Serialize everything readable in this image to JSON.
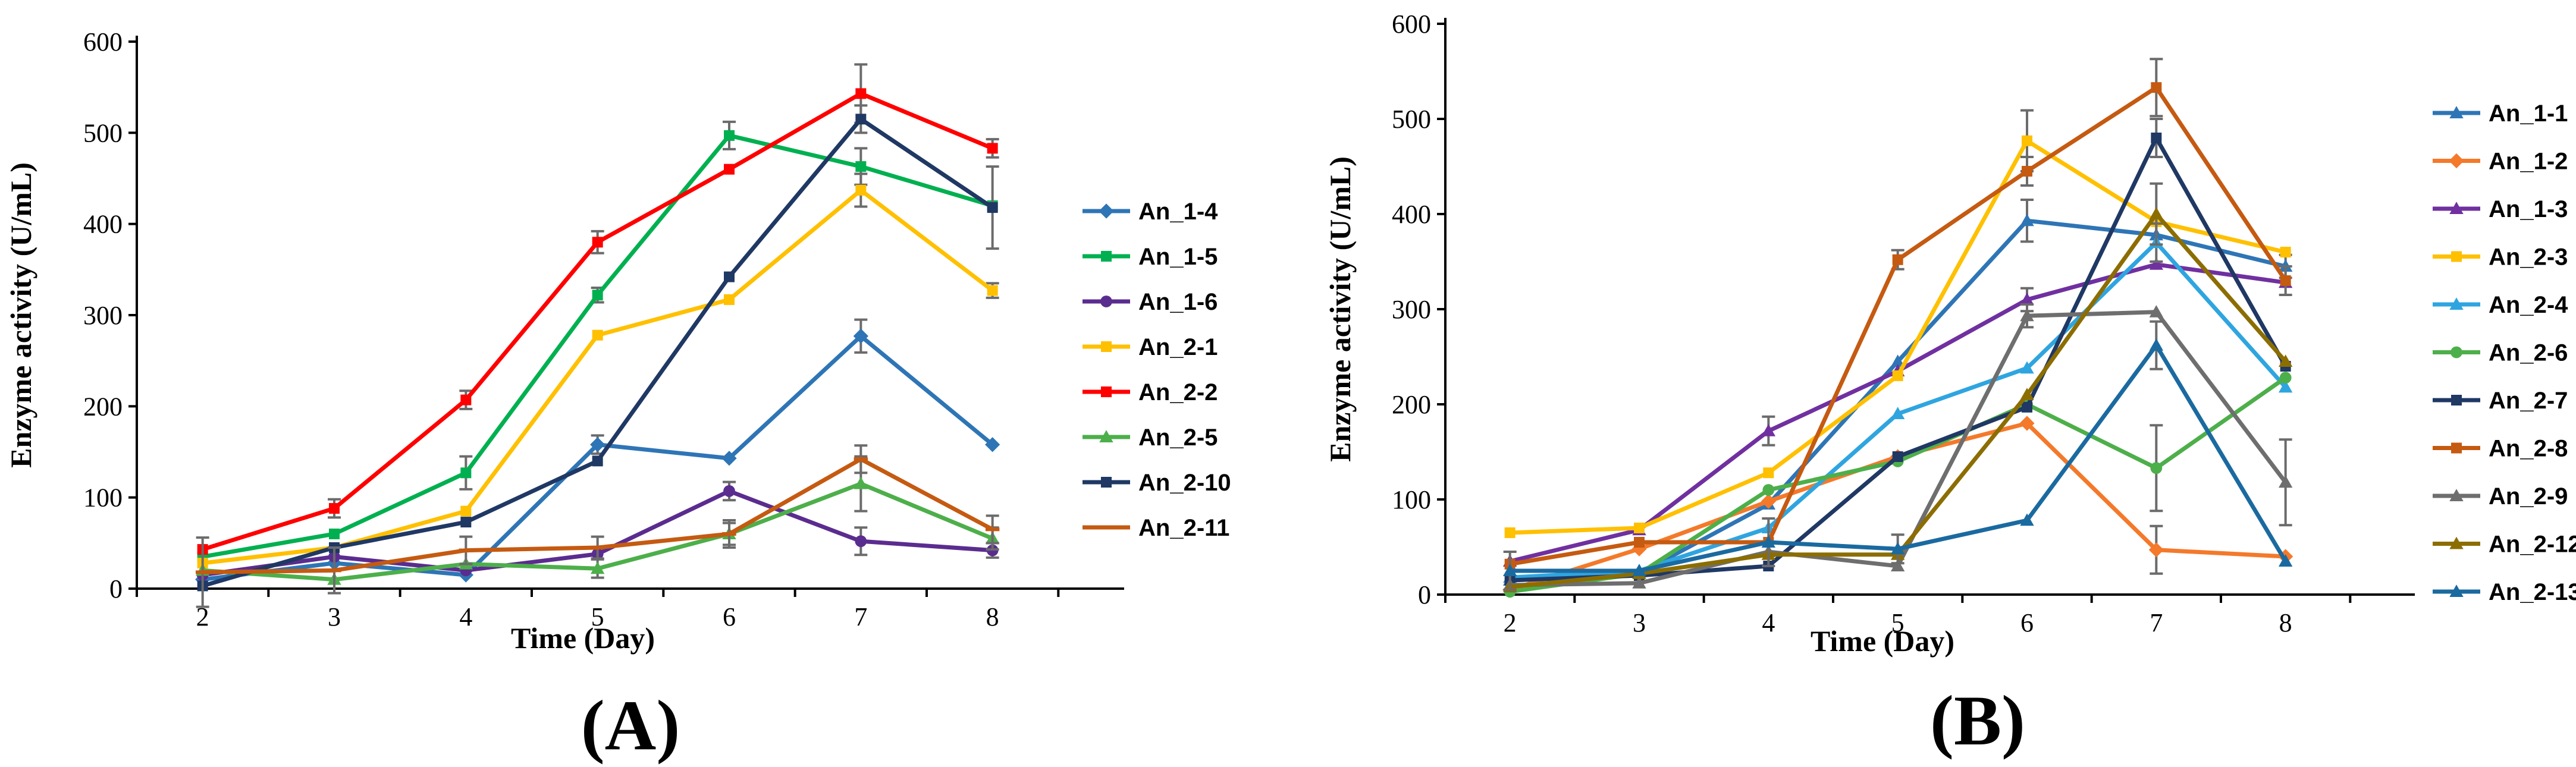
{
  "chart_data": [
    {
      "type": "line",
      "panel_label": "(A)",
      "xlabel": "Time (Day)",
      "ylabel": "Enzyme activity (U/mL)",
      "x": [
        2,
        3,
        4,
        5,
        6,
        7,
        8
      ],
      "xlim": [
        1.5,
        9.0
      ],
      "ylim": [
        0,
        600
      ],
      "yticks": [
        0,
        100,
        200,
        300,
        400,
        500,
        600
      ],
      "legend_position": "right",
      "series": [
        {
          "name": "An_1-4",
          "color": "#2e75b6",
          "marker": "diamond",
          "values": [
            10,
            28,
            15,
            158,
            143,
            277,
            158
          ],
          "errors": [
            0,
            0,
            0,
            10,
            0,
            18,
            0
          ]
        },
        {
          "name": "An_1-5",
          "color": "#00b050",
          "marker": "square",
          "values": [
            35,
            60,
            127,
            322,
            497,
            463,
            420
          ],
          "errors": [
            0,
            0,
            18,
            8,
            15,
            20,
            0
          ]
        },
        {
          "name": "An_1-6",
          "color": "#5b2c8f",
          "marker": "circle",
          "values": [
            15,
            35,
            20,
            38,
            107,
            52,
            42
          ],
          "errors": [
            0,
            0,
            0,
            0,
            10,
            15,
            8
          ]
        },
        {
          "name": "An_2-1",
          "color": "#ffc000",
          "marker": "square",
          "values": [
            28,
            45,
            85,
            278,
            317,
            437,
            327
          ],
          "errors": [
            0,
            0,
            0,
            0,
            0,
            18,
            8
          ]
        },
        {
          "name": "An_2-2",
          "color": "#ff0000",
          "marker": "square",
          "values": [
            43,
            88,
            207,
            380,
            460,
            543,
            483
          ],
          "errors": [
            0,
            10,
            10,
            12,
            0,
            32,
            10
          ]
        },
        {
          "name": "An_2-5",
          "color": "#4daf4a",
          "marker": "triangle",
          "values": [
            20,
            10,
            27,
            22,
            60,
            115,
            55
          ],
          "errors": [
            0,
            0,
            0,
            10,
            12,
            30,
            12
          ]
        },
        {
          "name": "An_2-10",
          "color": "#1f3864",
          "marker": "square",
          "values": [
            3,
            45,
            73,
            140,
            342,
            515,
            418
          ],
          "errors": [
            0,
            0,
            0,
            0,
            0,
            15,
            45
          ]
        },
        {
          "name": "An_2-11",
          "color": "#c55a11",
          "marker": "dash",
          "values": [
            18,
            20,
            42,
            45,
            60,
            142,
            65
          ],
          "errors": [
            38,
            25,
            15,
            12,
            15,
            15,
            15
          ]
        }
      ]
    },
    {
      "type": "line",
      "panel_label": "(B)",
      "xlabel": "Time (Day)",
      "ylabel": "Enzyme activity (U/mL)",
      "x": [
        2,
        3,
        4,
        5,
        6,
        7,
        8
      ],
      "xlim": [
        1.5,
        9.0
      ],
      "ylim": [
        0,
        600
      ],
      "yticks": [
        0,
        100,
        200,
        300,
        400,
        500,
        600
      ],
      "legend_position": "right",
      "series": [
        {
          "name": "An_1-1",
          "color": "#2e75b6",
          "marker": "triangle",
          "values": [
            15,
            22,
            95,
            245,
            393,
            378,
            345
          ],
          "errors": [
            0,
            0,
            0,
            0,
            22,
            0,
            12
          ]
        },
        {
          "name": "An_1-2",
          "color": "#f4792a",
          "marker": "diamond",
          "values": [
            5,
            48,
            98,
            145,
            180,
            47,
            40
          ],
          "errors": [
            0,
            0,
            0,
            0,
            0,
            25,
            0
          ]
        },
        {
          "name": "An_1-3",
          "color": "#7030a0",
          "marker": "triangle",
          "values": [
            35,
            68,
            172,
            235,
            310,
            347,
            328
          ],
          "errors": [
            0,
            0,
            15,
            0,
            12,
            0,
            0
          ]
        },
        {
          "name": "An_2-3",
          "color": "#ffc000",
          "marker": "square",
          "values": [
            65,
            70,
            128,
            230,
            477,
            392,
            360
          ],
          "errors": [
            0,
            0,
            0,
            0,
            32,
            0,
            0
          ]
        },
        {
          "name": "An_2-4",
          "color": "#2fa5e0",
          "marker": "triangle",
          "values": [
            18,
            25,
            70,
            190,
            238,
            370,
            218
          ],
          "errors": [
            0,
            0,
            0,
            0,
            0,
            20,
            0
          ]
        },
        {
          "name": "An_2-6",
          "color": "#4daf4a",
          "marker": "circle",
          "values": [
            3,
            22,
            110,
            140,
            200,
            133,
            228
          ],
          "errors": [
            0,
            0,
            0,
            0,
            0,
            45,
            0
          ]
        },
        {
          "name": "An_2-7",
          "color": "#1f3864",
          "marker": "square",
          "values": [
            15,
            20,
            30,
            145,
            197,
            480,
            240
          ],
          "errors": [
            0,
            0,
            0,
            0,
            0,
            20,
            0
          ]
        },
        {
          "name": "An_2-8",
          "color": "#c55a11",
          "marker": "square",
          "values": [
            32,
            55,
            55,
            352,
            445,
            533,
            330
          ],
          "errors": [
            0,
            0,
            0,
            10,
            15,
            30,
            15
          ]
        },
        {
          "name": "An_2-9",
          "color": "#6e6e6e",
          "marker": "triangle",
          "values": [
            10,
            12,
            45,
            30,
            293,
            297,
            118
          ],
          "errors": [
            0,
            0,
            0,
            0,
            12,
            0,
            45
          ]
        },
        {
          "name": "An_2-12",
          "color": "#8c6d00",
          "marker": "triangle",
          "values": [
            8,
            22,
            42,
            42,
            210,
            400,
            245
          ],
          "errors": [
            0,
            0,
            0,
            0,
            0,
            32,
            0
          ]
        },
        {
          "name": "An_2-13",
          "color": "#1a6aa0",
          "marker": "triangle",
          "values": [
            25,
            25,
            55,
            48,
            78,
            262,
            35
          ],
          "errors": [
            20,
            0,
            25,
            15,
            0,
            25,
            0
          ]
        }
      ]
    }
  ]
}
